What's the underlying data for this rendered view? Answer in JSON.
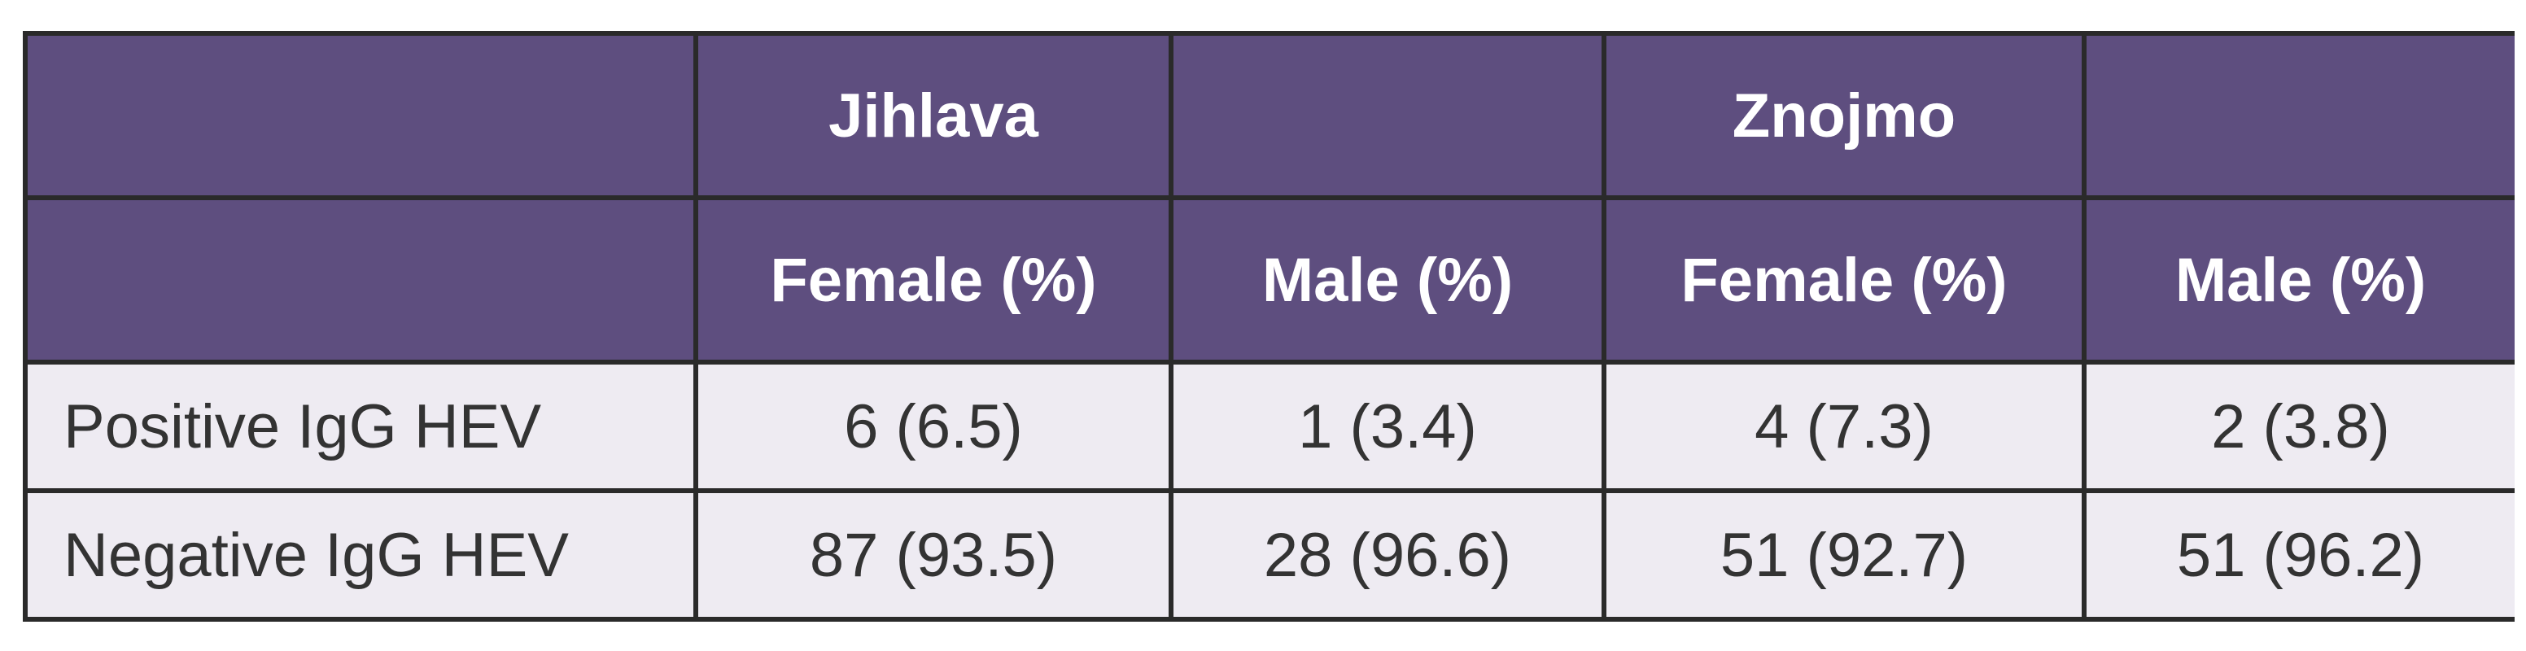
{
  "table": {
    "header_row_1": [
      "",
      "Jihlava",
      "",
      "Znojmo",
      ""
    ],
    "header_row_2": [
      "",
      "Female (%)",
      "Male (%)",
      "Female (%)",
      "Male (%)"
    ],
    "rows": [
      {
        "label": "Positive IgG HEV",
        "cells": [
          "6 (6.5)",
          "1 (3.4)",
          "4 (7.3)",
          "2 (3.8)"
        ]
      },
      {
        "label": "Negative IgG HEV",
        "cells": [
          "87 (93.5)",
          "28 (96.6)",
          "51 (92.7)",
          "51 (96.2)"
        ]
      }
    ],
    "colors": {
      "header_bg": "#5e4e7f",
      "body_bg": "#eeebf2",
      "border": "#2a2a2a"
    }
  }
}
